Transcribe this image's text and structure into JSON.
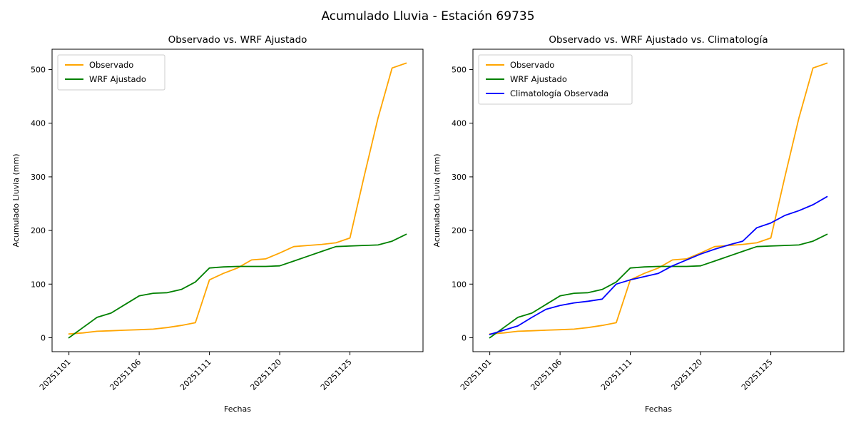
{
  "figure": {
    "title": "Acumulado Lluvia - Estación 69735",
    "background": "#ffffff"
  },
  "chart_data": [
    {
      "type": "line",
      "title": "Observado vs. WRF Ajustado",
      "xlabel": "Fechas",
      "ylabel": "Acumulado Lluvia (mm)",
      "x": [
        "20251101",
        "20251102",
        "20251103",
        "20251104",
        "20251105",
        "20251106",
        "20251107",
        "20251108",
        "20251109",
        "20251110",
        "20251111",
        "20251116",
        "20251117",
        "20251118",
        "20251119",
        "20251120",
        "20251121",
        "20251122",
        "20251123",
        "20251124",
        "20251125",
        "20251126",
        "20251127",
        "20251128",
        "20251129"
      ],
      "xtick_indices": [
        0,
        5,
        10,
        15,
        20
      ],
      "xtick_labels": [
        "20251101",
        "20251106",
        "20251111",
        "20251120",
        "20251125"
      ],
      "yticks": [
        0,
        100,
        200,
        300,
        400,
        500
      ],
      "ylim": [
        -26,
        538
      ],
      "xlim": [
        -1.2,
        25.2
      ],
      "grid": false,
      "legend_position": "upper left",
      "series": [
        {
          "name": "Observado",
          "color": "#FFA500",
          "values": [
            7,
            9,
            12,
            13,
            14,
            15,
            16,
            19,
            23,
            28,
            108,
            120,
            130,
            145,
            147,
            158,
            170,
            172,
            174,
            177,
            186,
            300,
            410,
            503,
            512
          ]
        },
        {
          "name": "WRF Ajustado",
          "color": "#008000",
          "values": [
            0,
            19,
            38,
            46,
            62,
            78,
            83,
            84,
            90,
            104,
            130,
            132,
            133,
            133,
            133,
            134,
            143,
            152,
            161,
            170,
            171,
            172,
            173,
            180,
            193
          ]
        }
      ]
    },
    {
      "type": "line",
      "title": "Observado vs. WRF Ajustado vs. Climatología",
      "xlabel": "Fechas",
      "ylabel": "Acumulado Lluvia (mm)",
      "x": [
        "20251101",
        "20251102",
        "20251103",
        "20251104",
        "20251105",
        "20251106",
        "20251107",
        "20251108",
        "20251109",
        "20251110",
        "20251111",
        "20251116",
        "20251117",
        "20251118",
        "20251119",
        "20251120",
        "20251121",
        "20251122",
        "20251123",
        "20251124",
        "20251125",
        "20251126",
        "20251127",
        "20251128",
        "20251129"
      ],
      "xtick_indices": [
        0,
        5,
        10,
        15,
        20
      ],
      "xtick_labels": [
        "20251101",
        "20251106",
        "20251111",
        "20251120",
        "20251125"
      ],
      "yticks": [
        0,
        100,
        200,
        300,
        400,
        500
      ],
      "ylim": [
        -26,
        538
      ],
      "xlim": [
        -1.2,
        25.2
      ],
      "grid": false,
      "legend_position": "upper left",
      "series": [
        {
          "name": "Observado",
          "color": "#FFA500",
          "values": [
            7,
            9,
            12,
            13,
            14,
            15,
            16,
            19,
            23,
            28,
            108,
            120,
            130,
            145,
            147,
            158,
            170,
            172,
            174,
            177,
            186,
            300,
            410,
            503,
            512
          ]
        },
        {
          "name": "WRF Ajustado",
          "color": "#008000",
          "values": [
            0,
            19,
            38,
            46,
            62,
            78,
            83,
            84,
            90,
            104,
            130,
            132,
            133,
            133,
            133,
            134,
            143,
            152,
            161,
            170,
            171,
            172,
            173,
            180,
            193
          ]
        },
        {
          "name": "Climatología Observada",
          "color": "#0000FF",
          "values": [
            6,
            14,
            22,
            38,
            53,
            60,
            65,
            68,
            72,
            100,
            108,
            114,
            120,
            134,
            145,
            156,
            165,
            173,
            180,
            205,
            214,
            228,
            237,
            248,
            263
          ]
        }
      ]
    }
  ]
}
